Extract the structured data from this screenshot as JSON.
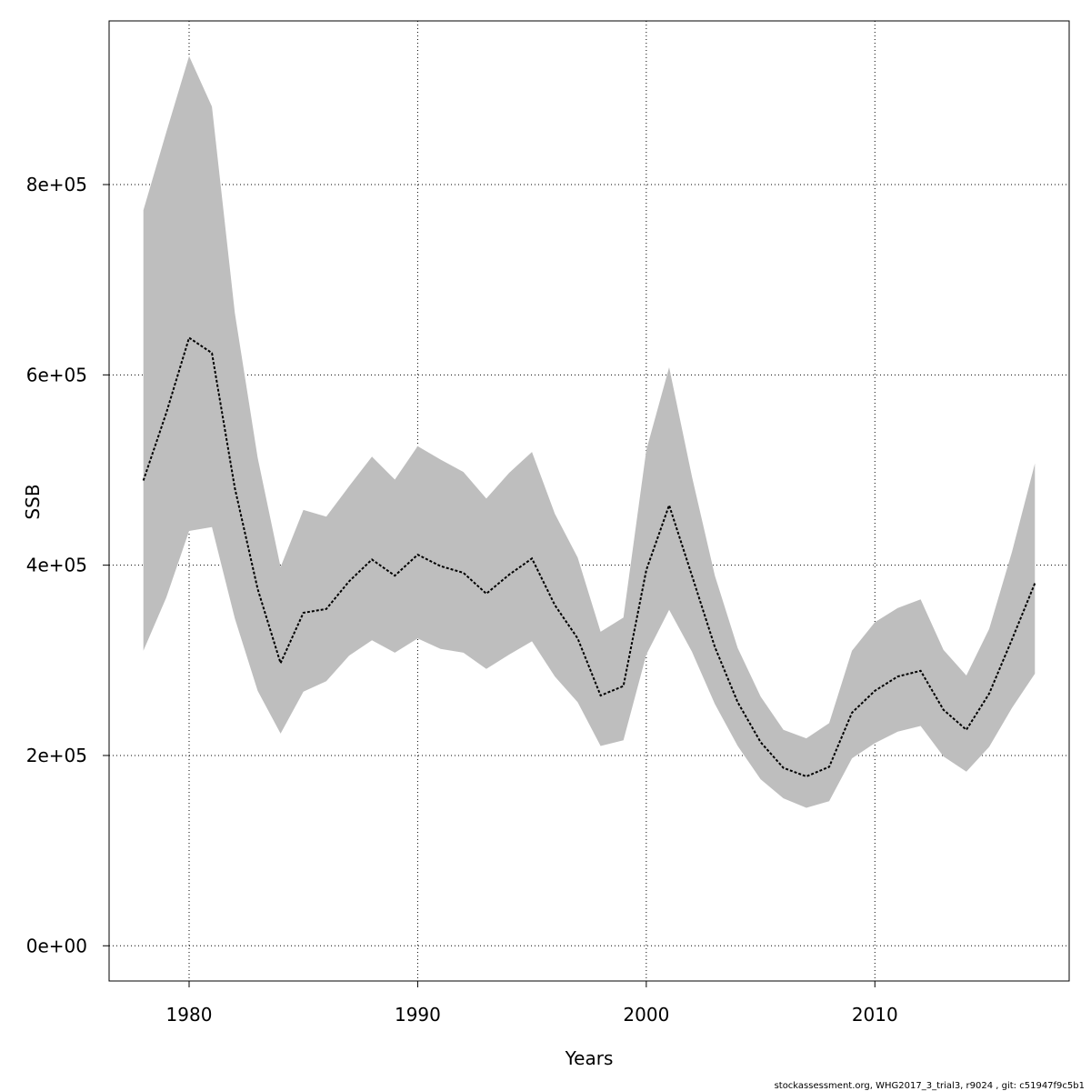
{
  "chart_data": {
    "type": "line",
    "title": "",
    "xlabel": "Years",
    "ylabel": "SSB",
    "xlim": [
      1976.5,
      2018.5
    ],
    "ylim": [
      -37000,
      972000
    ],
    "grid": true,
    "x_ticks": [
      1980,
      1990,
      2000,
      2010
    ],
    "x_tick_labels": [
      "1980",
      "1990",
      "2000",
      "2010"
    ],
    "y_ticks": [
      0,
      200000,
      400000,
      600000,
      800000
    ],
    "y_tick_labels": [
      "0e+00",
      "2e+05",
      "4e+05",
      "6e+05",
      "8e+05"
    ],
    "x": [
      1978,
      1979,
      1980,
      1981,
      1982,
      1983,
      1984,
      1985,
      1986,
      1987,
      1988,
      1989,
      1990,
      1991,
      1992,
      1993,
      1994,
      1995,
      1996,
      1997,
      1998,
      1999,
      2000,
      2001,
      2002,
      2003,
      2004,
      2005,
      2006,
      2007,
      2008,
      2009,
      2010,
      2011,
      2012,
      2013,
      2014,
      2015,
      2016,
      2017
    ],
    "series": [
      {
        "values": [
          489000,
          560000,
          639000,
          623000,
          481000,
          375000,
          297000,
          350000,
          354000,
          383000,
          406000,
          389000,
          411000,
          399000,
          392000,
          370000,
          390000,
          407000,
          358000,
          323000,
          263000,
          273000,
          395000,
          463000,
          389000,
          314000,
          256000,
          214000,
          187000,
          178000,
          188000,
          245000,
          268000,
          283000,
          289000,
          248000,
          227000,
          265000,
          322000,
          381000
        ],
        "lower": [
          310000,
          366000,
          436000,
          440000,
          344000,
          268000,
          223000,
          267000,
          278000,
          305000,
          321000,
          308000,
          323000,
          312000,
          308000,
          291000,
          306000,
          320000,
          283000,
          256000,
          210000,
          216000,
          306000,
          353000,
          309000,
          254000,
          210000,
          175000,
          155000,
          145000,
          152000,
          197000,
          213000,
          225000,
          231000,
          199000,
          183000,
          209000,
          250000,
          286000
        ],
        "upper": [
          773000,
          855000,
          935000,
          882000,
          665000,
          513000,
          398000,
          458000,
          451000,
          483000,
          514000,
          490000,
          525000,
          511000,
          498000,
          470000,
          497000,
          519000,
          454000,
          408000,
          330000,
          345000,
          521000,
          608000,
          493000,
          389000,
          313000,
          262000,
          227000,
          218000,
          234000,
          310000,
          340000,
          355000,
          364000,
          311000,
          284000,
          333000,
          414000,
          507000
        ]
      }
    ],
    "line_color": "#000000",
    "band_color": "#bebebe"
  },
  "footer_text": "stockassessment.org, WHG2017_3_trial3, r9024 , git: c51947f9c5b1"
}
